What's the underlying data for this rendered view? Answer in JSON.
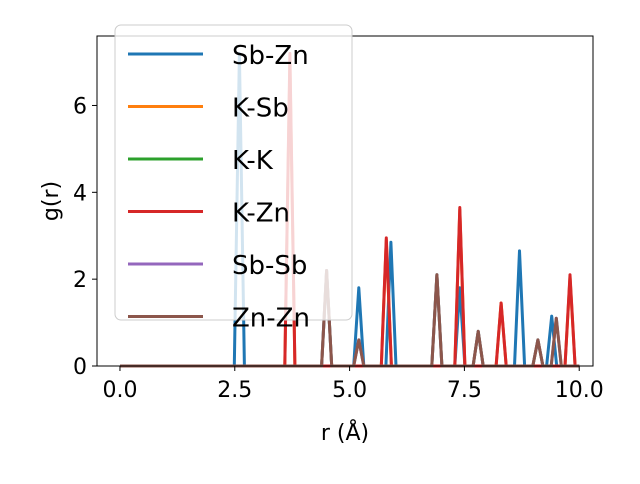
{
  "chart_data": {
    "type": "line",
    "title": "",
    "xlabel": "r (Å)",
    "ylabel": "g(r)",
    "xlim": [
      -0.5,
      10.3
    ],
    "ylim": [
      0,
      7.6
    ],
    "xticks": [
      0.0,
      2.5,
      5.0,
      7.5,
      10.0
    ],
    "xtick_labels": [
      "0.0",
      "2.5",
      "5.0",
      "7.5",
      "10.0"
    ],
    "yticks": [
      0,
      2,
      4,
      6
    ],
    "ytick_labels": [
      "0",
      "2",
      "4",
      "6"
    ],
    "grid": false,
    "legend_position": "top-left",
    "peak_half_width": 0.11,
    "series": [
      {
        "name": "Sb-Zn",
        "color": "#1f77b4",
        "peaks": [
          [
            2.6,
            7.2
          ],
          [
            5.2,
            1.8
          ],
          [
            5.9,
            2.85
          ],
          [
            7.4,
            1.8
          ],
          [
            8.7,
            2.65
          ],
          [
            9.4,
            1.15
          ]
        ]
      },
      {
        "name": "K-Sb",
        "color": "#ff7f0e",
        "peaks": [
          [
            3.7,
            7.0
          ],
          [
            5.8,
            2.9
          ],
          [
            7.4,
            3.6
          ],
          [
            8.3,
            1.45
          ],
          [
            9.8,
            2.05
          ]
        ]
      },
      {
        "name": "K-K",
        "color": "#2ca02c",
        "peaks": [
          [
            4.5,
            2.2
          ],
          [
            6.9,
            2.1
          ],
          [
            7.8,
            0.8
          ],
          [
            9.1,
            0.6
          ]
        ]
      },
      {
        "name": "K-Zn",
        "color": "#d62728",
        "peaks": [
          [
            3.7,
            7.2
          ],
          [
            5.8,
            2.95
          ],
          [
            7.4,
            3.65
          ],
          [
            8.3,
            1.45
          ],
          [
            9.8,
            2.1
          ]
        ]
      },
      {
        "name": "Sb-Sb",
        "color": "#9467bd",
        "peaks": [
          [
            4.5,
            2.2
          ],
          [
            5.2,
            0.6
          ],
          [
            6.9,
            2.1
          ],
          [
            7.8,
            0.8
          ],
          [
            9.1,
            0.6
          ],
          [
            9.5,
            1.1
          ]
        ]
      },
      {
        "name": "Zn-Zn",
        "color": "#8c564b",
        "peaks": [
          [
            4.5,
            2.2
          ],
          [
            5.2,
            0.6
          ],
          [
            6.9,
            2.1
          ],
          [
            7.8,
            0.8
          ],
          [
            9.1,
            0.6
          ],
          [
            9.5,
            1.1
          ]
        ]
      }
    ]
  }
}
